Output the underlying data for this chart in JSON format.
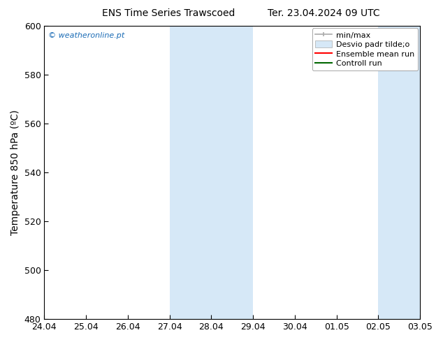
{
  "title_left": "ENS Time Series Trawscoed",
  "title_right": "Ter. 23.04.2024 09 UTC",
  "ylabel": "Temperature 850 hPa (ºC)",
  "ylim": [
    480,
    600
  ],
  "yticks": [
    480,
    500,
    520,
    540,
    560,
    580,
    600
  ],
  "xtick_labels": [
    "24.04",
    "25.04",
    "26.04",
    "27.04",
    "28.04",
    "29.04",
    "30.04",
    "01.05",
    "02.05",
    "03.05"
  ],
  "shaded_color": "#d6e8f7",
  "watermark_text": "© weatheronline.pt",
  "watermark_color": "#1a6bb5",
  "background_color": "#ffffff",
  "legend_minmax_color": "#aaaaaa",
  "legend_std_color": "#d6e8f7",
  "legend_mean_color": "#ff0000",
  "legend_ctrl_color": "#006600",
  "title_fontsize": 10,
  "ylabel_fontsize": 10,
  "tick_fontsize": 9,
  "watermark_fontsize": 8,
  "legend_fontsize": 8
}
